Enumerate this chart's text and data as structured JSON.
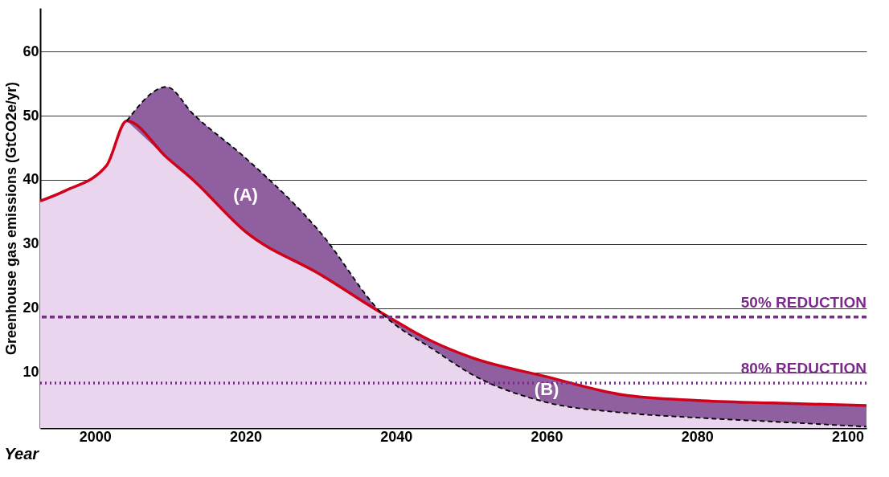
{
  "chart_data": {
    "type": "line",
    "ylabel": "Greenhouse gas emissions (GtCO2e/yr)",
    "xlabel": "Year",
    "x": [
      1992.7,
      1996,
      2001.5,
      2004.2,
      2009.5,
      2013,
      2020,
      2030,
      2038,
      2045,
      2050,
      2060,
      2070,
      2080,
      2090,
      2102.5
    ],
    "series": [
      {
        "type": "area",
        "color": "#ead5ee",
        "values": [
          36.7,
          38.3,
          42.2,
          49.2,
          43.5,
          40,
          31.9,
          25.2,
          19.3,
          13.5,
          9.7,
          5.3,
          3.7,
          2.9,
          2.3,
          1.5
        ]
      },
      {
        "type": "line",
        "color": "#d0021b",
        "line_style": "solid",
        "values": [
          36.7,
          38.3,
          42.2,
          49.2,
          43.5,
          40,
          31.9,
          25.2,
          19.3,
          14.7,
          12.3,
          9.3,
          6.5,
          5.6,
          5.2,
          4.8
        ]
      },
      {
        "type": "line",
        "color": "#000000",
        "line_style": "dashed",
        "values": [
          null,
          null,
          null,
          49.2,
          54.5,
          50.3,
          43.4,
          31.7,
          19.3,
          13.5,
          9.7,
          5.3,
          3.7,
          2.9,
          2.3,
          1.5
        ]
      }
    ],
    "xlim": [
      1992.7,
      2102.5
    ],
    "xticks": [
      2000,
      2020,
      2040,
      2060,
      2080,
      2100
    ],
    "ylim": [
      1.3,
      66.8
    ],
    "yticks": [
      10,
      20,
      30,
      40,
      50,
      60
    ],
    "grid": "y",
    "ref_lines": [
      {
        "axis": "y",
        "value": 18.6,
        "label": "50% REDUCTION",
        "color": "#7b2a8c",
        "line_style": "dashed"
      },
      {
        "axis": "y",
        "value": 8.3,
        "label": "80% REDUCTION",
        "color": "#7b2a8c",
        "line_style": "dotted"
      }
    ],
    "annotations": [
      "(A)",
      "(B)"
    ]
  }
}
